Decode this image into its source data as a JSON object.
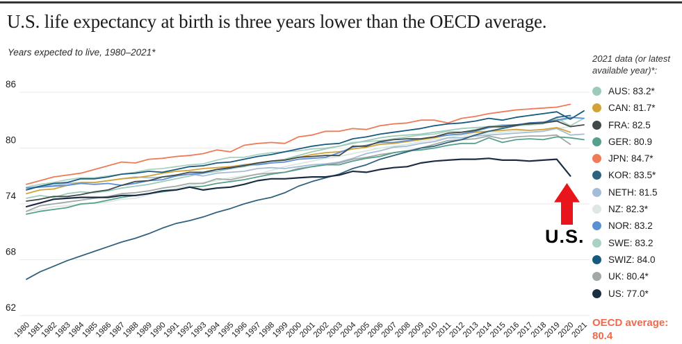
{
  "header": {
    "title": "U.S. life expectancy at birth is three years lower than the OECD average.",
    "subtitle": "Years expected to live, 1980–2021*"
  },
  "annotation": {
    "label": "U.S.",
    "arrow_color": "#e8151c"
  },
  "legend": {
    "title": "2021 data (or latest available year)*:",
    "items": [
      {
        "code": "AUS",
        "label": "AUS: 83.2*",
        "color": "#9ecabb"
      },
      {
        "code": "CAN",
        "label": "CAN: 81.7*",
        "color": "#d3a237"
      },
      {
        "code": "FRA",
        "label": "FRA: 82.5",
        "color": "#404a48"
      },
      {
        "code": "GER",
        "label": "GER: 80.9",
        "color": "#56a08b"
      },
      {
        "code": "JPN",
        "label": "JPN: 84.7*",
        "color": "#ee7a58"
      },
      {
        "code": "KOR",
        "label": "KOR: 83.5*",
        "color": "#2f627d"
      },
      {
        "code": "NETH",
        "label": "NETH: 81.5",
        "color": "#a3bdd8"
      },
      {
        "code": "NZ",
        "label": "NZ: 82.3*",
        "color": "#dce8e1"
      },
      {
        "code": "NOR",
        "label": "NOR: 83.2",
        "color": "#5c90d5"
      },
      {
        "code": "SWE",
        "label": "SWE: 83.2",
        "color": "#aad1c1"
      },
      {
        "code": "SWIZ",
        "label": "SWIZ: 84.0",
        "color": "#175a80"
      },
      {
        "code": "UK",
        "label": "UK: 80.4*",
        "color": "#a2a8a6"
      },
      {
        "code": "US",
        "label": "US: 77.0*",
        "color": "#1b2d43"
      }
    ],
    "oecd": {
      "label": "OECD average:",
      "value": "80.4",
      "color": "#ee6a4c"
    }
  },
  "chart_data": {
    "type": "line",
    "title": "U.S. life expectancy at birth is three years lower than the OECD average.",
    "ylabel": "Years expected to live",
    "xlabel": "",
    "x": [
      1980,
      1981,
      1982,
      1983,
      1984,
      1985,
      1986,
      1987,
      1988,
      1989,
      1990,
      1991,
      1992,
      1993,
      1994,
      1995,
      1996,
      1997,
      1998,
      1999,
      2000,
      2001,
      2002,
      2003,
      2004,
      2005,
      2006,
      2007,
      2008,
      2009,
      2010,
      2011,
      2012,
      2013,
      2014,
      2015,
      2016,
      2017,
      2018,
      2019,
      2020,
      2021
    ],
    "y_ticks": [
      86,
      80,
      74,
      68,
      62
    ],
    "ylim": [
      62,
      86
    ],
    "grid": "horizontal",
    "legend_position": "right",
    "axis_text_color": "#1a1a1a",
    "grid_color": "#e9e9e9",
    "series": [
      {
        "name": "AUS",
        "color": "#9ecabb",
        "values": [
          74.6,
          74.9,
          74.7,
          75.1,
          75.3,
          75.2,
          75.4,
          75.7,
          75.9,
          76.1,
          76.4,
          76.7,
          77.0,
          77.3,
          77.5,
          77.8,
          78.0,
          78.3,
          78.6,
          78.8,
          79.2,
          79.6,
          79.9,
          80.2,
          80.5,
          80.8,
          81.1,
          81.3,
          81.4,
          81.5,
          81.7,
          81.9,
          82.1,
          82.2,
          82.3,
          82.5,
          82.5,
          82.6,
          82.7,
          82.9,
          83.2,
          null
        ]
      },
      {
        "name": "CAN",
        "color": "#d3a237",
        "values": [
          75.1,
          75.5,
          75.6,
          76.0,
          76.3,
          76.3,
          76.5,
          76.7,
          76.8,
          77.0,
          77.3,
          77.5,
          77.6,
          77.8,
          77.9,
          78.0,
          78.2,
          78.4,
          78.6,
          78.7,
          79.0,
          79.3,
          79.5,
          79.6,
          79.9,
          80.1,
          80.4,
          80.5,
          80.7,
          80.9,
          81.1,
          81.4,
          81.5,
          81.7,
          81.8,
          81.9,
          82.0,
          81.9,
          82.0,
          82.2,
          81.7,
          null
        ]
      },
      {
        "name": "FRA",
        "color": "#404a48",
        "values": [
          74.3,
          74.5,
          74.8,
          74.8,
          75.0,
          75.3,
          75.5,
          76.0,
          76.4,
          76.5,
          76.9,
          77.1,
          77.4,
          77.4,
          77.7,
          77.9,
          78.1,
          78.4,
          78.6,
          78.7,
          79.0,
          79.1,
          79.2,
          79.2,
          80.2,
          80.2,
          80.7,
          80.9,
          81.0,
          81.0,
          81.2,
          81.6,
          81.7,
          81.9,
          82.3,
          82.3,
          82.5,
          82.6,
          82.7,
          82.9,
          82.3,
          82.5
        ]
      },
      {
        "name": "GER",
        "color": "#56a08b",
        "values": [
          72.9,
          73.2,
          73.4,
          73.6,
          74.0,
          74.1,
          74.4,
          74.7,
          74.9,
          75.1,
          75.3,
          75.5,
          75.8,
          75.9,
          76.2,
          76.4,
          76.6,
          76.9,
          77.2,
          77.4,
          77.7,
          78.0,
          78.2,
          78.2,
          78.6,
          78.9,
          79.1,
          79.5,
          79.7,
          79.8,
          80.0,
          80.3,
          80.5,
          80.5,
          81.1,
          80.6,
          80.9,
          81.0,
          80.9,
          81.2,
          81.1,
          80.9
        ]
      },
      {
        "name": "JPN",
        "color": "#ee7a58",
        "values": [
          76.1,
          76.5,
          76.9,
          77.1,
          77.3,
          77.7,
          78.1,
          78.5,
          78.4,
          78.8,
          78.9,
          79.1,
          79.2,
          79.4,
          79.8,
          79.6,
          80.3,
          80.5,
          80.6,
          80.5,
          81.2,
          81.4,
          81.8,
          81.8,
          82.1,
          82.0,
          82.4,
          82.6,
          82.7,
          83.0,
          83.0,
          82.7,
          83.2,
          83.4,
          83.7,
          83.9,
          84.1,
          84.2,
          84.3,
          84.4,
          84.7,
          null
        ]
      },
      {
        "name": "KOR",
        "color": "#2f627d",
        "values": [
          65.9,
          66.7,
          67.3,
          67.9,
          68.4,
          68.9,
          69.4,
          69.9,
          70.3,
          70.8,
          71.4,
          71.9,
          72.2,
          72.6,
          73.1,
          73.5,
          74.0,
          74.4,
          74.7,
          75.2,
          75.9,
          76.4,
          76.8,
          77.2,
          77.8,
          78.2,
          78.8,
          79.2,
          79.6,
          80.0,
          80.2,
          80.6,
          80.9,
          81.4,
          81.8,
          82.1,
          82.4,
          82.7,
          82.7,
          83.3,
          83.5,
          null
        ]
      },
      {
        "name": "NETH",
        "color": "#a3bdd8",
        "values": [
          75.7,
          75.9,
          76.0,
          76.2,
          76.3,
          76.3,
          76.5,
          76.7,
          76.9,
          76.8,
          76.9,
          77.0,
          77.2,
          77.0,
          77.3,
          77.4,
          77.5,
          77.8,
          77.9,
          77.8,
          78.0,
          78.2,
          78.3,
          78.5,
          78.9,
          79.4,
          79.7,
          80.1,
          80.2,
          80.5,
          80.7,
          81.1,
          81.1,
          81.3,
          81.4,
          81.5,
          81.6,
          81.7,
          81.8,
          82.1,
          81.4,
          81.5
        ]
      },
      {
        "name": "NZ",
        "color": "#dce8e1",
        "values": [
          73.2,
          73.4,
          73.7,
          73.8,
          73.9,
          74.1,
          74.2,
          74.5,
          74.6,
          75.0,
          75.4,
          75.7,
          76.0,
          76.3,
          76.5,
          76.8,
          77.0,
          77.2,
          77.6,
          78.0,
          78.3,
          78.6,
          78.9,
          79.1,
          79.4,
          79.7,
          80.0,
          80.2,
          80.4,
          80.7,
          80.9,
          81.1,
          81.4,
          81.4,
          81.6,
          81.7,
          81.8,
          81.9,
          82.0,
          82.1,
          82.3,
          null
        ]
      },
      {
        "name": "NOR",
        "color": "#5c90d5",
        "values": [
          75.7,
          75.8,
          75.9,
          76.0,
          76.2,
          76.1,
          76.2,
          76.0,
          76.2,
          76.5,
          76.6,
          77.0,
          77.2,
          77.3,
          77.7,
          77.8,
          78.2,
          78.2,
          78.4,
          78.5,
          78.8,
          78.9,
          79.0,
          79.5,
          80.1,
          80.3,
          80.6,
          80.6,
          80.8,
          81.0,
          81.2,
          81.4,
          81.5,
          81.8,
          82.2,
          82.4,
          82.5,
          82.7,
          82.8,
          83.0,
          83.3,
          83.2
        ]
      },
      {
        "name": "SWE",
        "color": "#aad1c1",
        "values": [
          75.8,
          76.1,
          76.3,
          76.6,
          76.8,
          76.8,
          77.0,
          77.2,
          77.4,
          77.7,
          77.8,
          78.0,
          78.2,
          78.3,
          78.7,
          79.0,
          79.0,
          79.3,
          79.5,
          79.6,
          79.7,
          79.9,
          80.0,
          80.2,
          80.6,
          80.7,
          80.8,
          81.0,
          81.2,
          81.4,
          81.5,
          81.8,
          81.7,
          82.0,
          82.3,
          82.2,
          82.4,
          82.5,
          82.6,
          83.2,
          82.4,
          83.2
        ]
      },
      {
        "name": "SWIZ",
        "color": "#175a80",
        "values": [
          75.5,
          75.9,
          76.2,
          76.3,
          76.7,
          76.7,
          76.9,
          77.2,
          77.3,
          77.5,
          77.4,
          77.7,
          78.0,
          78.1,
          78.4,
          78.5,
          78.8,
          79.1,
          79.3,
          79.6,
          79.9,
          80.2,
          80.4,
          80.5,
          81.0,
          81.2,
          81.5,
          81.7,
          81.9,
          82.1,
          82.4,
          82.6,
          82.7,
          82.9,
          83.2,
          83.0,
          83.3,
          83.5,
          83.7,
          83.9,
          83.1,
          84.0
        ]
      },
      {
        "name": "UK",
        "color": "#a2a8a6",
        "values": [
          73.2,
          73.8,
          74.0,
          74.2,
          74.4,
          74.6,
          74.8,
          75.1,
          75.2,
          75.4,
          75.7,
          75.9,
          76.2,
          76.2,
          76.7,
          76.6,
          76.9,
          77.2,
          77.3,
          77.4,
          77.8,
          78.0,
          78.2,
          78.4,
          78.8,
          79.0,
          79.3,
          79.5,
          79.7,
          80.0,
          80.4,
          80.8,
          80.9,
          81.0,
          81.3,
          81.0,
          81.2,
          81.3,
          81.3,
          81.4,
          80.4,
          null
        ]
      },
      {
        "name": "US",
        "color": "#1b2d43",
        "values": [
          73.7,
          74.1,
          74.5,
          74.6,
          74.7,
          74.7,
          74.7,
          74.9,
          74.9,
          75.1,
          75.4,
          75.5,
          75.8,
          75.5,
          75.7,
          75.8,
          76.1,
          76.5,
          76.7,
          76.7,
          76.8,
          76.9,
          76.9,
          77.1,
          77.5,
          77.4,
          77.7,
          77.9,
          78.0,
          78.4,
          78.6,
          78.7,
          78.8,
          78.8,
          78.9,
          78.7,
          78.7,
          78.6,
          78.7,
          78.8,
          77.0,
          null
        ]
      }
    ]
  }
}
